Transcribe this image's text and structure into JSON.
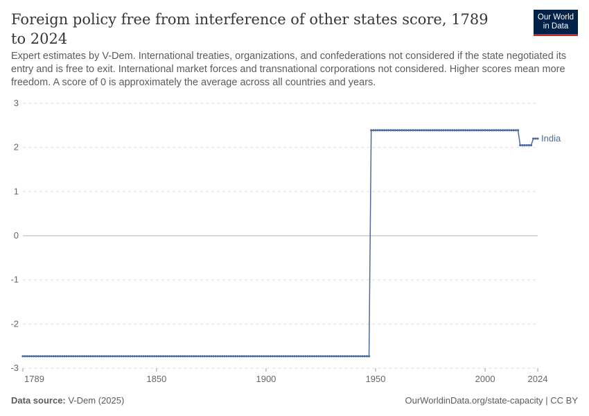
{
  "title": "Foreign policy free from interference of other states score, 1789 to 2024",
  "subtitle": "Expert estimates by V-Dem. International treaties, organizations, and confederations not considered if the state negotiated its entry and is free to exit. International market forces and transnational corporations not considered. Higher scores mean more freedom. A score of 0 is approximately the average across all countries and years.",
  "logo": {
    "line1": "Our World",
    "line2": "in Data"
  },
  "footer": {
    "source_label": "Data source:",
    "source": "V-Dem (2025)",
    "right": "OurWorldinData.org/state-capacity | CC BY"
  },
  "chart_data": {
    "type": "line",
    "xlim": [
      1789,
      2024
    ],
    "ylim": [
      -3,
      3
    ],
    "x_ticks": [
      "1789",
      "1850",
      "1900",
      "1950",
      "2000",
      "2024"
    ],
    "y_ticks": [
      "3",
      "2",
      "1",
      "0",
      "-1",
      "-2",
      "-3"
    ],
    "grid": true,
    "color": "#4c6a9c",
    "series": [
      {
        "name": "India",
        "steps": [
          {
            "from": 1789,
            "to": 1947,
            "value": -2.73
          },
          {
            "from": 1948,
            "to": 2015,
            "value": 2.39
          },
          {
            "from": 2016,
            "to": 2021,
            "value": 2.05
          },
          {
            "from": 2022,
            "to": 2024,
            "value": 2.2
          }
        ]
      }
    ]
  }
}
